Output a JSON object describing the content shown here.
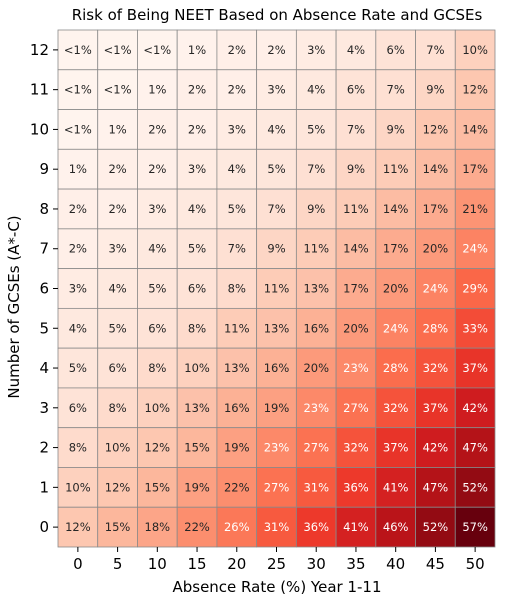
{
  "chart_data": {
    "type": "heatmap",
    "title": "Risk of Being NEET Based on Absence Rate and GCSEs",
    "xlabel": "Absence Rate (%) Year 1-11",
    "ylabel": "Number of GCSEs (A*-C)",
    "x": [
      "0",
      "5",
      "10",
      "15",
      "20",
      "25",
      "30",
      "35",
      "40",
      "45",
      "50"
    ],
    "y": [
      "12",
      "11",
      "10",
      "9",
      "8",
      "7",
      "6",
      "5",
      "4",
      "3",
      "2",
      "1",
      "0"
    ],
    "colormap": "Reds",
    "grid": true,
    "values": [
      [
        0.5,
        0.5,
        0.5,
        1,
        2,
        2,
        3,
        4,
        6,
        7,
        10
      ],
      [
        0.5,
        0.5,
        1,
        2,
        2,
        3,
        4,
        6,
        7,
        9,
        12
      ],
      [
        0.5,
        1,
        2,
        2,
        3,
        4,
        5,
        7,
        9,
        12,
        14
      ],
      [
        1,
        2,
        2,
        3,
        4,
        5,
        7,
        9,
        11,
        14,
        17
      ],
      [
        2,
        2,
        3,
        4,
        5,
        7,
        9,
        11,
        14,
        17,
        21
      ],
      [
        2,
        3,
        4,
        5,
        7,
        9,
        11,
        14,
        17,
        20,
        24
      ],
      [
        3,
        4,
        5,
        6,
        8,
        11,
        13,
        17,
        20,
        24,
        29
      ],
      [
        4,
        5,
        6,
        8,
        11,
        13,
        16,
        20,
        24,
        28,
        33
      ],
      [
        5,
        6,
        8,
        10,
        13,
        16,
        20,
        23,
        28,
        32,
        37
      ],
      [
        6,
        8,
        10,
        13,
        16,
        19,
        23,
        27,
        32,
        37,
        42
      ],
      [
        8,
        10,
        12,
        15,
        19,
        23,
        27,
        32,
        37,
        42,
        47
      ],
      [
        10,
        12,
        15,
        19,
        22,
        27,
        31,
        36,
        41,
        47,
        52
      ],
      [
        12,
        15,
        18,
        22,
        26,
        31,
        36,
        41,
        46,
        52,
        57
      ]
    ],
    "labels": [
      [
        "<1%",
        "<1%",
        "<1%",
        "1%",
        "2%",
        "2%",
        "3%",
        "4%",
        "6%",
        "7%",
        "10%"
      ],
      [
        "<1%",
        "<1%",
        "1%",
        "2%",
        "2%",
        "3%",
        "4%",
        "6%",
        "7%",
        "9%",
        "12%"
      ],
      [
        "<1%",
        "1%",
        "2%",
        "2%",
        "3%",
        "4%",
        "5%",
        "7%",
        "9%",
        "12%",
        "14%"
      ],
      [
        "1%",
        "2%",
        "2%",
        "3%",
        "4%",
        "5%",
        "7%",
        "9%",
        "11%",
        "14%",
        "17%"
      ],
      [
        "2%",
        "2%",
        "3%",
        "4%",
        "5%",
        "7%",
        "9%",
        "11%",
        "14%",
        "17%",
        "21%"
      ],
      [
        "2%",
        "3%",
        "4%",
        "5%",
        "7%",
        "9%",
        "11%",
        "14%",
        "17%",
        "20%",
        "24%"
      ],
      [
        "3%",
        "4%",
        "5%",
        "6%",
        "8%",
        "11%",
        "13%",
        "17%",
        "20%",
        "24%",
        "29%"
      ],
      [
        "4%",
        "5%",
        "6%",
        "8%",
        "11%",
        "13%",
        "16%",
        "20%",
        "24%",
        "28%",
        "33%"
      ],
      [
        "5%",
        "6%",
        "8%",
        "10%",
        "13%",
        "16%",
        "20%",
        "23%",
        "28%",
        "32%",
        "37%"
      ],
      [
        "6%",
        "8%",
        "10%",
        "13%",
        "16%",
        "19%",
        "23%",
        "27%",
        "32%",
        "37%",
        "42%"
      ],
      [
        "8%",
        "10%",
        "12%",
        "15%",
        "19%",
        "23%",
        "27%",
        "32%",
        "37%",
        "42%",
        "47%"
      ],
      [
        "10%",
        "12%",
        "15%",
        "19%",
        "22%",
        "27%",
        "31%",
        "36%",
        "41%",
        "47%",
        "52%"
      ],
      [
        "12%",
        "15%",
        "18%",
        "22%",
        "26%",
        "31%",
        "36%",
        "41%",
        "46%",
        "52%",
        "57%"
      ]
    ]
  }
}
